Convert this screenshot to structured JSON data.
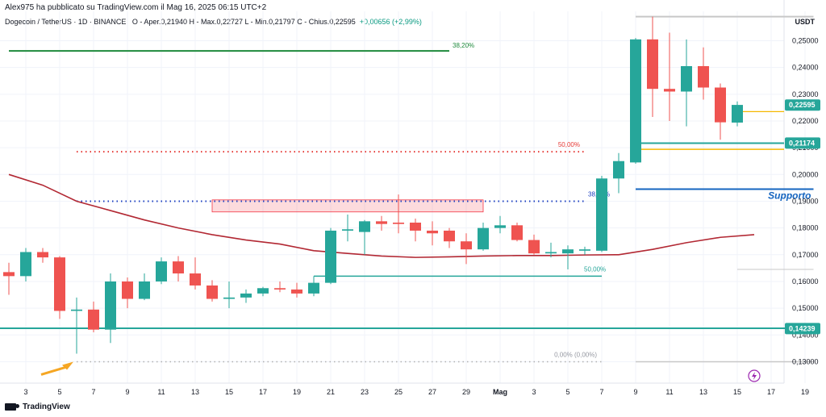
{
  "header": {
    "published_by": "Alex975 ha pubblicato su TradingView.com il Mag 16, 2025 06:15 UTC+2",
    "symbol": "Dogecoin / TetherUS · 1D · BINANCE",
    "ohlc": "O - Aper.0,21940  H - Max.0,22727  L - Min.0,21797  C - Chius.0,22595",
    "change": "+0,00656 (+2,99%)",
    "currency": "USDT"
  },
  "footer": {
    "brand": "TradingView"
  },
  "colors": {
    "up": "#26a69a",
    "down": "#ef5350",
    "ma": "#b22833",
    "fib_green": "#1e8a3c",
    "fib_red_dots": "#e53935",
    "fib_blue_dots": "#1e40c0",
    "teal_line": "#26a69a",
    "support": "#1565c0",
    "yellow": "#f5b800",
    "grey": "#b0b0b0"
  },
  "chart_data": {
    "type": "candlestick",
    "title": "Dogecoin / TetherUS · 1D · BINANCE",
    "ylabel": "USDT",
    "ylim": [
      0.122,
      0.261
    ],
    "yticks": [
      "0,13000",
      "0,14000",
      "0,15000",
      "0,16000",
      "0,17000",
      "0,18000",
      "0,19000",
      "0,20000",
      "0,21000",
      "0,22000",
      "0,23000",
      "0,24000",
      "0,25000"
    ],
    "xticks": [
      {
        "d": 1,
        "label": "3"
      },
      {
        "d": 3,
        "label": "5"
      },
      {
        "d": 5,
        "label": "7"
      },
      {
        "d": 7,
        "label": "9"
      },
      {
        "d": 9,
        "label": "11"
      },
      {
        "d": 11,
        "label": "13"
      },
      {
        "d": 13,
        "label": "15"
      },
      {
        "d": 15,
        "label": "17"
      },
      {
        "d": 17,
        "label": "19"
      },
      {
        "d": 19,
        "label": "21"
      },
      {
        "d": 21,
        "label": "23"
      },
      {
        "d": 23,
        "label": "25"
      },
      {
        "d": 25,
        "label": "27"
      },
      {
        "d": 27,
        "label": "29"
      },
      {
        "d": 29,
        "label": "Mag"
      },
      {
        "d": 31,
        "label": "3"
      },
      {
        "d": 33,
        "label": "5"
      },
      {
        "d": 35,
        "label": "7"
      },
      {
        "d": 37,
        "label": "9"
      },
      {
        "d": 39,
        "label": "11"
      },
      {
        "d": 41,
        "label": "13"
      },
      {
        "d": 43,
        "label": "15"
      },
      {
        "d": 45,
        "label": "17"
      },
      {
        "d": 47,
        "label": "19"
      }
    ],
    "candles": [
      {
        "d": 0,
        "o": 0.1635,
        "h": 0.167,
        "l": 0.155,
        "c": 0.162
      },
      {
        "d": 1,
        "o": 0.162,
        "h": 0.1725,
        "l": 0.16,
        "c": 0.171
      },
      {
        "d": 2,
        "o": 0.171,
        "h": 0.1725,
        "l": 0.167,
        "c": 0.169
      },
      {
        "d": 3,
        "o": 0.169,
        "h": 0.1695,
        "l": 0.146,
        "c": 0.149
      },
      {
        "d": 4,
        "o": 0.149,
        "h": 0.154,
        "l": 0.133,
        "c": 0.1495
      },
      {
        "d": 5,
        "o": 0.1495,
        "h": 0.1525,
        "l": 0.141,
        "c": 0.142
      },
      {
        "d": 6,
        "o": 0.142,
        "h": 0.163,
        "l": 0.137,
        "c": 0.16
      },
      {
        "d": 7,
        "o": 0.16,
        "h": 0.1615,
        "l": 0.15,
        "c": 0.1535
      },
      {
        "d": 8,
        "o": 0.1535,
        "h": 0.163,
        "l": 0.153,
        "c": 0.16
      },
      {
        "d": 9,
        "o": 0.16,
        "h": 0.169,
        "l": 0.159,
        "c": 0.1675
      },
      {
        "d": 10,
        "o": 0.1675,
        "h": 0.1695,
        "l": 0.16,
        "c": 0.163
      },
      {
        "d": 11,
        "o": 0.163,
        "h": 0.169,
        "l": 0.157,
        "c": 0.1585
      },
      {
        "d": 12,
        "o": 0.1585,
        "h": 0.1605,
        "l": 0.1525,
        "c": 0.1535
      },
      {
        "d": 13,
        "o": 0.1535,
        "h": 0.16,
        "l": 0.15,
        "c": 0.154
      },
      {
        "d": 14,
        "o": 0.154,
        "h": 0.157,
        "l": 0.152,
        "c": 0.1555
      },
      {
        "d": 15,
        "o": 0.1555,
        "h": 0.158,
        "l": 0.1545,
        "c": 0.1575
      },
      {
        "d": 16,
        "o": 0.1575,
        "h": 0.16,
        "l": 0.156,
        "c": 0.157
      },
      {
        "d": 17,
        "o": 0.157,
        "h": 0.1595,
        "l": 0.154,
        "c": 0.1555
      },
      {
        "d": 18,
        "o": 0.1555,
        "h": 0.162,
        "l": 0.1545,
        "c": 0.1595
      },
      {
        "d": 19,
        "o": 0.1595,
        "h": 0.18,
        "l": 0.159,
        "c": 0.179
      },
      {
        "d": 20,
        "o": 0.179,
        "h": 0.185,
        "l": 0.175,
        "c": 0.1795
      },
      {
        "d": 21,
        "o": 0.1785,
        "h": 0.183,
        "l": 0.17,
        "c": 0.1825
      },
      {
        "d": 22,
        "o": 0.1825,
        "h": 0.1845,
        "l": 0.179,
        "c": 0.1815
      },
      {
        "d": 23,
        "o": 0.182,
        "h": 0.1925,
        "l": 0.178,
        "c": 0.1815
      },
      {
        "d": 24,
        "o": 0.182,
        "h": 0.1835,
        "l": 0.175,
        "c": 0.179
      },
      {
        "d": 25,
        "o": 0.179,
        "h": 0.1825,
        "l": 0.1735,
        "c": 0.178
      },
      {
        "d": 26,
        "o": 0.179,
        "h": 0.18,
        "l": 0.1725,
        "c": 0.175
      },
      {
        "d": 27,
        "o": 0.175,
        "h": 0.178,
        "l": 0.1665,
        "c": 0.172
      },
      {
        "d": 28,
        "o": 0.172,
        "h": 0.182,
        "l": 0.1715,
        "c": 0.18
      },
      {
        "d": 29,
        "o": 0.18,
        "h": 0.1845,
        "l": 0.178,
        "c": 0.181
      },
      {
        "d": 30,
        "o": 0.181,
        "h": 0.182,
        "l": 0.175,
        "c": 0.1755
      },
      {
        "d": 31,
        "o": 0.1755,
        "h": 0.1775,
        "l": 0.17,
        "c": 0.1705
      },
      {
        "d": 32,
        "o": 0.1705,
        "h": 0.1745,
        "l": 0.169,
        "c": 0.171
      },
      {
        "d": 33,
        "o": 0.1705,
        "h": 0.1735,
        "l": 0.1645,
        "c": 0.172
      },
      {
        "d": 34,
        "o": 0.1715,
        "h": 0.173,
        "l": 0.17,
        "c": 0.172
      },
      {
        "d": 35,
        "o": 0.1715,
        "h": 0.1995,
        "l": 0.171,
        "c": 0.1985
      },
      {
        "d": 36,
        "o": 0.1985,
        "h": 0.208,
        "l": 0.193,
        "c": 0.205
      },
      {
        "d": 37,
        "o": 0.2045,
        "h": 0.251,
        "l": 0.204,
        "c": 0.2505
      },
      {
        "d": 38,
        "o": 0.2505,
        "h": 0.259,
        "l": 0.2215,
        "c": 0.232
      },
      {
        "d": 39,
        "o": 0.232,
        "h": 0.253,
        "l": 0.22,
        "c": 0.231
      },
      {
        "d": 40,
        "o": 0.231,
        "h": 0.2505,
        "l": 0.218,
        "c": 0.2405
      },
      {
        "d": 41,
        "o": 0.2405,
        "h": 0.2475,
        "l": 0.228,
        "c": 0.2325
      },
      {
        "d": 42,
        "o": 0.2325,
        "h": 0.234,
        "l": 0.213,
        "c": 0.2195
      },
      {
        "d": 43,
        "o": 0.2194,
        "h": 0.2273,
        "l": 0.218,
        "c": 0.226
      }
    ],
    "moving_average": [
      {
        "d": 0,
        "v": 0.2
      },
      {
        "d": 2,
        "v": 0.196
      },
      {
        "d": 4,
        "v": 0.19
      },
      {
        "d": 6,
        "v": 0.1865
      },
      {
        "d": 8,
        "v": 0.183
      },
      {
        "d": 10,
        "v": 0.18
      },
      {
        "d": 12,
        "v": 0.1775
      },
      {
        "d": 14,
        "v": 0.1755
      },
      {
        "d": 16,
        "v": 0.174
      },
      {
        "d": 18,
        "v": 0.1715
      },
      {
        "d": 20,
        "v": 0.1705
      },
      {
        "d": 22,
        "v": 0.1695
      },
      {
        "d": 24,
        "v": 0.169
      },
      {
        "d": 26,
        "v": 0.1692
      },
      {
        "d": 28,
        "v": 0.1695
      },
      {
        "d": 30,
        "v": 0.1697
      },
      {
        "d": 32,
        "v": 0.1697
      },
      {
        "d": 34,
        "v": 0.1699
      },
      {
        "d": 36,
        "v": 0.17
      },
      {
        "d": 38,
        "v": 0.172
      },
      {
        "d": 40,
        "v": 0.1745
      },
      {
        "d": 42,
        "v": 0.1765
      },
      {
        "d": 44,
        "v": 0.1775
      }
    ],
    "annotations": {
      "fib_38": {
        "label": "38,20%",
        "price": 0.2462,
        "d1": 0,
        "d2": 26
      },
      "fib_50_red": {
        "label": "50,00%",
        "price": 0.2085,
        "d1": 4,
        "d2": 34
      },
      "fib_blue": {
        "label": "38,20%",
        "price": 0.19,
        "d1": 4,
        "d2": 34
      },
      "fib_50_teal": {
        "label": "50,00%",
        "price": 0.162,
        "d1": 18,
        "d2": 35
      },
      "fib_0": {
        "label": "0,00% (0,00%)",
        "price": 0.13,
        "d1": 4,
        "d2": 35
      },
      "resistance_zone": {
        "p_top": 0.1905,
        "p_bot": 0.186,
        "d1": 12,
        "d2": 28
      },
      "support_line": {
        "label": "Supporto",
        "price": 0.1945,
        "d1": 37,
        "d2": 47.5
      },
      "support_teal": {
        "price": 0.1425,
        "d1": -2,
        "d2": 47.5
      },
      "upper_grey": {
        "price": 0.259,
        "d1": 37,
        "d2": 47.5
      },
      "yellow_lines": [
        0.2235,
        0.2094
      ],
      "teal_level": 0.2117,
      "grey_bottom": {
        "price": 0.13,
        "d1": 37,
        "d2": 47.5
      },
      "grey_small": {
        "price": 0.1645,
        "d1": 43,
        "d2": 47.5
      }
    },
    "price_labels": [
      {
        "label": "0,22595",
        "price": 0.22595,
        "color": "#26a69a"
      },
      {
        "label": "0,21174",
        "price": 0.21174,
        "color": "#26a69a"
      },
      {
        "label": "0,14239",
        "price": 0.14239,
        "color": "#26a69a"
      }
    ]
  }
}
